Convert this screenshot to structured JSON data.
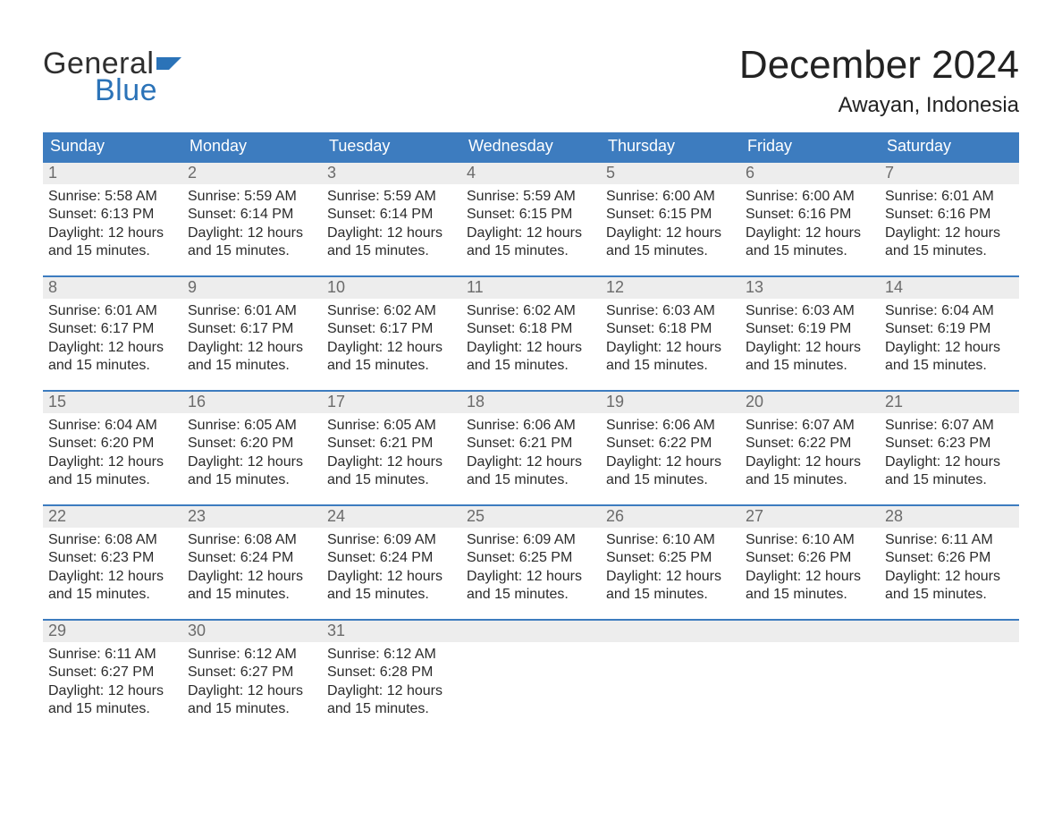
{
  "logo": {
    "word_top": "General",
    "word_bottom": "Blue",
    "text_color": "#2f2f2f",
    "blue_color": "#2b73b8",
    "flag_color": "#2b73b8"
  },
  "title": "December 2024",
  "location": "Awayan, Indonesia",
  "colors": {
    "header_bg": "#3d7cbf",
    "header_text": "#ffffff",
    "week_border": "#3d7cbf",
    "daynum_bg": "#ededed",
    "daynum_text": "#6b6b6b",
    "body_text": "#2b2b2b",
    "page_bg": "#ffffff"
  },
  "typography": {
    "title_fontsize": 44,
    "location_fontsize": 24,
    "dow_fontsize": 18,
    "daynum_fontsize": 18,
    "body_fontsize": 16
  },
  "days_of_week": [
    "Sunday",
    "Monday",
    "Tuesday",
    "Wednesday",
    "Thursday",
    "Friday",
    "Saturday"
  ],
  "labels": {
    "sunrise": "Sunrise:",
    "sunset": "Sunset:",
    "daylight": "Daylight:"
  },
  "weeks": [
    [
      {
        "n": "1",
        "sunrise": "5:58 AM",
        "sunset": "6:13 PM",
        "daylight": "12 hours and 15 minutes."
      },
      {
        "n": "2",
        "sunrise": "5:59 AM",
        "sunset": "6:14 PM",
        "daylight": "12 hours and 15 minutes."
      },
      {
        "n": "3",
        "sunrise": "5:59 AM",
        "sunset": "6:14 PM",
        "daylight": "12 hours and 15 minutes."
      },
      {
        "n": "4",
        "sunrise": "5:59 AM",
        "sunset": "6:15 PM",
        "daylight": "12 hours and 15 minutes."
      },
      {
        "n": "5",
        "sunrise": "6:00 AM",
        "sunset": "6:15 PM",
        "daylight": "12 hours and 15 minutes."
      },
      {
        "n": "6",
        "sunrise": "6:00 AM",
        "sunset": "6:16 PM",
        "daylight": "12 hours and 15 minutes."
      },
      {
        "n": "7",
        "sunrise": "6:01 AM",
        "sunset": "6:16 PM",
        "daylight": "12 hours and 15 minutes."
      }
    ],
    [
      {
        "n": "8",
        "sunrise": "6:01 AM",
        "sunset": "6:17 PM",
        "daylight": "12 hours and 15 minutes."
      },
      {
        "n": "9",
        "sunrise": "6:01 AM",
        "sunset": "6:17 PM",
        "daylight": "12 hours and 15 minutes."
      },
      {
        "n": "10",
        "sunrise": "6:02 AM",
        "sunset": "6:17 PM",
        "daylight": "12 hours and 15 minutes."
      },
      {
        "n": "11",
        "sunrise": "6:02 AM",
        "sunset": "6:18 PM",
        "daylight": "12 hours and 15 minutes."
      },
      {
        "n": "12",
        "sunrise": "6:03 AM",
        "sunset": "6:18 PM",
        "daylight": "12 hours and 15 minutes."
      },
      {
        "n": "13",
        "sunrise": "6:03 AM",
        "sunset": "6:19 PM",
        "daylight": "12 hours and 15 minutes."
      },
      {
        "n": "14",
        "sunrise": "6:04 AM",
        "sunset": "6:19 PM",
        "daylight": "12 hours and 15 minutes."
      }
    ],
    [
      {
        "n": "15",
        "sunrise": "6:04 AM",
        "sunset": "6:20 PM",
        "daylight": "12 hours and 15 minutes."
      },
      {
        "n": "16",
        "sunrise": "6:05 AM",
        "sunset": "6:20 PM",
        "daylight": "12 hours and 15 minutes."
      },
      {
        "n": "17",
        "sunrise": "6:05 AM",
        "sunset": "6:21 PM",
        "daylight": "12 hours and 15 minutes."
      },
      {
        "n": "18",
        "sunrise": "6:06 AM",
        "sunset": "6:21 PM",
        "daylight": "12 hours and 15 minutes."
      },
      {
        "n": "19",
        "sunrise": "6:06 AM",
        "sunset": "6:22 PM",
        "daylight": "12 hours and 15 minutes."
      },
      {
        "n": "20",
        "sunrise": "6:07 AM",
        "sunset": "6:22 PM",
        "daylight": "12 hours and 15 minutes."
      },
      {
        "n": "21",
        "sunrise": "6:07 AM",
        "sunset": "6:23 PM",
        "daylight": "12 hours and 15 minutes."
      }
    ],
    [
      {
        "n": "22",
        "sunrise": "6:08 AM",
        "sunset": "6:23 PM",
        "daylight": "12 hours and 15 minutes."
      },
      {
        "n": "23",
        "sunrise": "6:08 AM",
        "sunset": "6:24 PM",
        "daylight": "12 hours and 15 minutes."
      },
      {
        "n": "24",
        "sunrise": "6:09 AM",
        "sunset": "6:24 PM",
        "daylight": "12 hours and 15 minutes."
      },
      {
        "n": "25",
        "sunrise": "6:09 AM",
        "sunset": "6:25 PM",
        "daylight": "12 hours and 15 minutes."
      },
      {
        "n": "26",
        "sunrise": "6:10 AM",
        "sunset": "6:25 PM",
        "daylight": "12 hours and 15 minutes."
      },
      {
        "n": "27",
        "sunrise": "6:10 AM",
        "sunset": "6:26 PM",
        "daylight": "12 hours and 15 minutes."
      },
      {
        "n": "28",
        "sunrise": "6:11 AM",
        "sunset": "6:26 PM",
        "daylight": "12 hours and 15 minutes."
      }
    ],
    [
      {
        "n": "29",
        "sunrise": "6:11 AM",
        "sunset": "6:27 PM",
        "daylight": "12 hours and 15 minutes."
      },
      {
        "n": "30",
        "sunrise": "6:12 AM",
        "sunset": "6:27 PM",
        "daylight": "12 hours and 15 minutes."
      },
      {
        "n": "31",
        "sunrise": "6:12 AM",
        "sunset": "6:28 PM",
        "daylight": "12 hours and 15 minutes."
      },
      {
        "empty": true
      },
      {
        "empty": true
      },
      {
        "empty": true
      },
      {
        "empty": true
      }
    ]
  ]
}
